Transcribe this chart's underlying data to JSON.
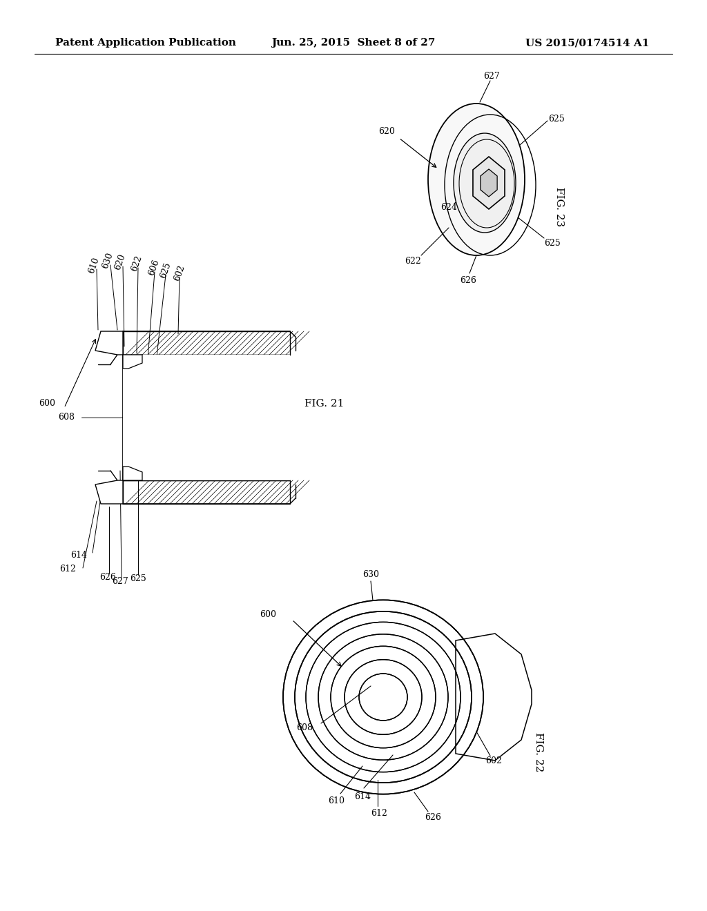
{
  "page_width": 10.24,
  "page_height": 13.2,
  "background": "#ffffff",
  "header": {
    "left": "Patent Application Publication",
    "center": "Jun. 25, 2015  Sheet 8 of 27",
    "right": "US 2015/0174514 A1",
    "fontsize": 11
  }
}
